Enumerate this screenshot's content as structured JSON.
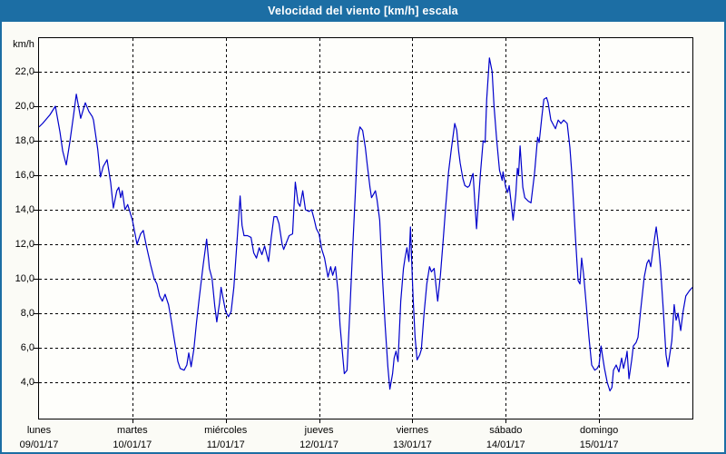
{
  "window": {
    "title": "Velocidad del viento [km/h] escala"
  },
  "colors": {
    "titlebar_bg": "#1c6ea4",
    "titlebar_text": "#ffffff",
    "panel_bg": "#fbfbf6",
    "plot_bg": "#fefefb",
    "line": "#0000cc",
    "grid": "#000000",
    "axis": "#000000"
  },
  "chart_data": {
    "type": "line",
    "title": "Velocidad del viento [km/h] escala",
    "xlabel": "",
    "ylabel": "km/h",
    "ylim": [
      2,
      24
    ],
    "xlim_hours": [
      0,
      168
    ],
    "grid": "dashed",
    "legend": "none",
    "y_ticks": [
      {
        "value": 22,
        "label": "22,0"
      },
      {
        "value": 20,
        "label": "20,0"
      },
      {
        "value": 18,
        "label": "18,0"
      },
      {
        "value": 16,
        "label": "16,0"
      },
      {
        "value": 14,
        "label": "14,0"
      },
      {
        "value": 12,
        "label": "12,0"
      },
      {
        "value": 10,
        "label": "10,0"
      },
      {
        "value": 8,
        "label": "8,0"
      },
      {
        "value": 6,
        "label": "6,0"
      },
      {
        "value": 4,
        "label": "4,0"
      }
    ],
    "x_days": [
      {
        "name": "lunes",
        "date": "09/01/17"
      },
      {
        "name": "martes",
        "date": "10/01/17"
      },
      {
        "name": "miércoles",
        "date": "11/01/17"
      },
      {
        "name": "jueves",
        "date": "12/01/17"
      },
      {
        "name": "viernes",
        "date": "13/01/17"
      },
      {
        "name": "sábado",
        "date": "14/01/17"
      },
      {
        "name": "domingo",
        "date": "15/01/17"
      }
    ],
    "series": [
      {
        "name": "Velocidad del viento",
        "unit": "km/h",
        "color": "#0000cc",
        "points_hours_kmh": [
          [
            0,
            18.8
          ],
          [
            0.9,
            19.0
          ],
          [
            2.8,
            19.5
          ],
          [
            4.2,
            20.0
          ],
          [
            5.4,
            18.5
          ],
          [
            6.1,
            17.4
          ],
          [
            7,
            16.6
          ],
          [
            7.9,
            17.9
          ],
          [
            8.9,
            19.5
          ],
          [
            9.6,
            20.7
          ],
          [
            10.7,
            19.3
          ],
          [
            11.9,
            20.2
          ],
          [
            12.8,
            19.7
          ],
          [
            13.7,
            19.4
          ],
          [
            14,
            19.2
          ],
          [
            15.1,
            17.5
          ],
          [
            15.8,
            15.9
          ],
          [
            16.5,
            16.5
          ],
          [
            17.5,
            16.9
          ],
          [
            18.4,
            15.6
          ],
          [
            19.1,
            14.1
          ],
          [
            20,
            15.1
          ],
          [
            20.5,
            15.3
          ],
          [
            21,
            14.7
          ],
          [
            21.4,
            15.1
          ],
          [
            22.1,
            14.0
          ],
          [
            22.8,
            14.3
          ],
          [
            24,
            13.4
          ],
          [
            25.2,
            12.0
          ],
          [
            26.1,
            12.6
          ],
          [
            26.8,
            12.8
          ],
          [
            27.5,
            12.0
          ],
          [
            28,
            11.5
          ],
          [
            28.7,
            10.8
          ],
          [
            29.6,
            10.0
          ],
          [
            30.3,
            9.7
          ],
          [
            31,
            9.0
          ],
          [
            31.7,
            8.7
          ],
          [
            32.4,
            9.1
          ],
          [
            33.3,
            8.5
          ],
          [
            34,
            7.6
          ],
          [
            34.7,
            6.6
          ],
          [
            35.7,
            5.2
          ],
          [
            36.3,
            4.8
          ],
          [
            37.3,
            4.7
          ],
          [
            38,
            5.0
          ],
          [
            38.5,
            5.7
          ],
          [
            39.1,
            4.9
          ],
          [
            39.8,
            5.9
          ],
          [
            40.5,
            7.5
          ],
          [
            41.2,
            8.9
          ],
          [
            42.2,
            10.8
          ],
          [
            43.1,
            12.3
          ],
          [
            43.8,
            10.6
          ],
          [
            44.5,
            10.0
          ],
          [
            45.2,
            8.4
          ],
          [
            45.7,
            7.5
          ],
          [
            46.4,
            8.6
          ],
          [
            46.8,
            9.5
          ],
          [
            47.3,
            8.9
          ],
          [
            48,
            8.1
          ],
          [
            48.7,
            7.8
          ],
          [
            49.4,
            8.1
          ],
          [
            50.1,
            9.5
          ],
          [
            50.8,
            11.8
          ],
          [
            51.7,
            14.8
          ],
          [
            52.2,
            13.1
          ],
          [
            52.7,
            12.5
          ],
          [
            53.6,
            12.5
          ],
          [
            54.5,
            12.4
          ],
          [
            55.2,
            11.5
          ],
          [
            55.9,
            11.2
          ],
          [
            56.6,
            11.8
          ],
          [
            57.3,
            11.4
          ],
          [
            58,
            11.9
          ],
          [
            59,
            11.0
          ],
          [
            59.7,
            12.4
          ],
          [
            60.4,
            13.6
          ],
          [
            61.1,
            13.6
          ],
          [
            61.7,
            13.2
          ],
          [
            62.5,
            12.0
          ],
          [
            62.9,
            11.7
          ],
          [
            63.6,
            12.1
          ],
          [
            64.3,
            12.5
          ],
          [
            65.2,
            12.6
          ],
          [
            65.9,
            15.6
          ],
          [
            66.6,
            14.4
          ],
          [
            67.1,
            14.2
          ],
          [
            67.8,
            15.1
          ],
          [
            68.5,
            14.0
          ],
          [
            69.4,
            13.9
          ],
          [
            70.1,
            14.0
          ],
          [
            70.8,
            13.4
          ],
          [
            71.3,
            12.9
          ],
          [
            72,
            12.6
          ],
          [
            72.7,
            11.7
          ],
          [
            73.4,
            11.2
          ],
          [
            74.3,
            10.1
          ],
          [
            75,
            10.7
          ],
          [
            75.5,
            10.2
          ],
          [
            76.2,
            10.7
          ],
          [
            76.9,
            9.2
          ],
          [
            77.4,
            7.3
          ],
          [
            78.1,
            5.5
          ],
          [
            78.5,
            4.5
          ],
          [
            79.2,
            4.7
          ],
          [
            79.9,
            8.0
          ],
          [
            80.6,
            11.5
          ],
          [
            81.3,
            14.8
          ],
          [
            82,
            18.2
          ],
          [
            82.5,
            18.8
          ],
          [
            83.2,
            18.6
          ],
          [
            83.9,
            17.6
          ],
          [
            84.4,
            16.6
          ],
          [
            85.1,
            15.3
          ],
          [
            85.5,
            14.7
          ],
          [
            86,
            14.9
          ],
          [
            86.5,
            15.1
          ],
          [
            86.9,
            14.6
          ],
          [
            87.6,
            13.4
          ],
          [
            88.3,
            10.1
          ],
          [
            89,
            7.3
          ],
          [
            89.7,
            4.9
          ],
          [
            90.2,
            3.6
          ],
          [
            90.9,
            4.5
          ],
          [
            91.3,
            5.4
          ],
          [
            91.8,
            5.8
          ],
          [
            92.3,
            5.2
          ],
          [
            93,
            8.7
          ],
          [
            93.7,
            10.6
          ],
          [
            94.1,
            11.2
          ],
          [
            94.6,
            11.8
          ],
          [
            95.1,
            11.0
          ],
          [
            95.5,
            13.0
          ],
          [
            96,
            10.0
          ],
          [
            96.2,
            8.8
          ],
          [
            96.7,
            6.6
          ],
          [
            97.2,
            5.3
          ],
          [
            97.9,
            5.6
          ],
          [
            98.3,
            5.9
          ],
          [
            99,
            8.0
          ],
          [
            99.7,
            9.7
          ],
          [
            100.4,
            10.7
          ],
          [
            100.9,
            10.4
          ],
          [
            101.6,
            10.6
          ],
          [
            102.5,
            8.7
          ],
          [
            103.2,
            10.2
          ],
          [
            103.9,
            12.2
          ],
          [
            104.6,
            14.3
          ],
          [
            105.3,
            16.2
          ],
          [
            106,
            17.5
          ],
          [
            106.9,
            19.0
          ],
          [
            107.4,
            18.6
          ],
          [
            107.9,
            17.4
          ],
          [
            108.3,
            16.7
          ],
          [
            109,
            15.8
          ],
          [
            109.5,
            15.4
          ],
          [
            110.2,
            15.3
          ],
          [
            110.7,
            15.4
          ],
          [
            111.4,
            16.0
          ],
          [
            111.6,
            16.1
          ],
          [
            112.1,
            14.3
          ],
          [
            112.5,
            12.9
          ],
          [
            113.5,
            16.1
          ],
          [
            114.2,
            18.0
          ],
          [
            114.7,
            17.9
          ],
          [
            115.1,
            20.4
          ],
          [
            115.8,
            22.8
          ],
          [
            116.5,
            22.0
          ],
          [
            117,
            20.0
          ],
          [
            117.7,
            18.0
          ],
          [
            118.4,
            16.3
          ],
          [
            119.1,
            15.7
          ],
          [
            119.3,
            16.2
          ],
          [
            120,
            15.3
          ],
          [
            120.5,
            15.0
          ],
          [
            120.9,
            15.4
          ],
          [
            121.9,
            13.4
          ],
          [
            122.6,
            14.9
          ],
          [
            123,
            16.4
          ],
          [
            123.3,
            16.0
          ],
          [
            123.7,
            17.7
          ],
          [
            124.4,
            15.3
          ],
          [
            124.9,
            14.7
          ],
          [
            125.8,
            14.5
          ],
          [
            126.5,
            14.4
          ],
          [
            127.4,
            16.1
          ],
          [
            128.2,
            18.2
          ],
          [
            128.6,
            17.9
          ],
          [
            129.3,
            19.4
          ],
          [
            129.8,
            20.4
          ],
          [
            130.5,
            20.5
          ],
          [
            130.9,
            20.2
          ],
          [
            131.6,
            19.2
          ],
          [
            132.3,
            18.9
          ],
          [
            132.8,
            18.7
          ],
          [
            133.5,
            19.2
          ],
          [
            134.2,
            19.0
          ],
          [
            134.9,
            19.2
          ],
          [
            135.8,
            19.0
          ],
          [
            136.5,
            17.6
          ],
          [
            137,
            16.1
          ],
          [
            137.9,
            12.5
          ],
          [
            138.6,
            9.9
          ],
          [
            139.1,
            9.7
          ],
          [
            139.5,
            11.2
          ],
          [
            140,
            10.3
          ],
          [
            140.7,
            8.5
          ],
          [
            141.4,
            6.6
          ],
          [
            142.1,
            5.0
          ],
          [
            142.9,
            4.7
          ],
          [
            143.5,
            4.8
          ],
          [
            144,
            5.0
          ],
          [
            144.5,
            6.1
          ],
          [
            144.9,
            5.5
          ],
          [
            145.4,
            4.8
          ],
          [
            146.1,
            4.0
          ],
          [
            146.8,
            3.5
          ],
          [
            147.3,
            3.7
          ],
          [
            147.7,
            4.7
          ],
          [
            148.4,
            5.0
          ],
          [
            149.1,
            4.6
          ],
          [
            149.8,
            5.4
          ],
          [
            150.3,
            4.8
          ],
          [
            151,
            5.5
          ],
          [
            151.2,
            5.8
          ],
          [
            151.7,
            4.2
          ],
          [
            152.4,
            5.3
          ],
          [
            152.8,
            6.1
          ],
          [
            153.5,
            6.3
          ],
          [
            154,
            6.6
          ],
          [
            154.7,
            8.2
          ],
          [
            155.6,
            10.1
          ],
          [
            156.3,
            10.9
          ],
          [
            156.8,
            11.1
          ],
          [
            157.3,
            10.7
          ],
          [
            158,
            11.9
          ],
          [
            158.7,
            13.0
          ],
          [
            159.4,
            11.7
          ],
          [
            159.8,
            10.6
          ],
          [
            160.5,
            8.2
          ],
          [
            161.2,
            5.6
          ],
          [
            161.7,
            4.9
          ],
          [
            162.7,
            6.4
          ],
          [
            163.3,
            8.5
          ],
          [
            163.8,
            7.6
          ],
          [
            164.3,
            8.0
          ],
          [
            165,
            7.0
          ],
          [
            165.6,
            8.1
          ],
          [
            166.3,
            9.0
          ],
          [
            167.2,
            9.3
          ],
          [
            168,
            9.5
          ]
        ]
      }
    ]
  }
}
